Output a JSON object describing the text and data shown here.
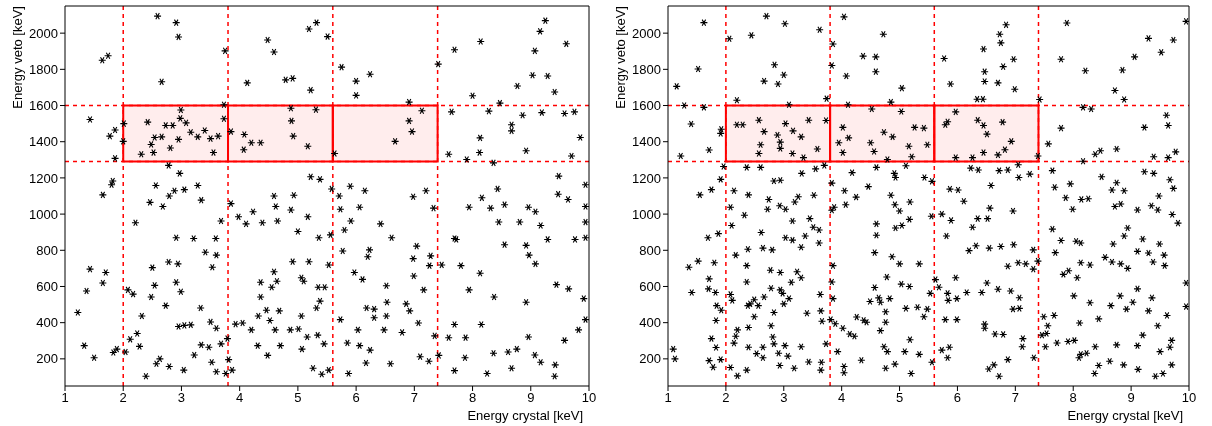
{
  "chart_data": [
    {
      "type": "scatter",
      "xlabel": "Energy crystal [keV]",
      "ylabel": "Energy veto [keV]",
      "xlim": [
        1,
        10
      ],
      "xticks": [
        1,
        2,
        3,
        4,
        5,
        6,
        7,
        8,
        9,
        10
      ],
      "ylim": [
        50,
        2150
      ],
      "yticks": [
        200,
        400,
        600,
        800,
        1000,
        1200,
        1400,
        1600,
        1800,
        2000
      ],
      "grid": false,
      "legend": false,
      "marker": "cross",
      "ref_lines": [
        {
          "axis": "x",
          "value": 2,
          "color": "#ff0000",
          "line_style": "dashed"
        },
        {
          "axis": "x",
          "value": 3.8,
          "color": "#ff0000",
          "line_style": "dashed"
        },
        {
          "axis": "x",
          "value": 5.6,
          "color": "#ff0000",
          "line_style": "dashed"
        },
        {
          "axis": "x",
          "value": 7.4,
          "color": "#ff0000",
          "line_style": "dashed"
        },
        {
          "axis": "y",
          "value": 1290,
          "color": "#ff0000",
          "line_style": "dashed"
        },
        {
          "axis": "y",
          "value": 1600,
          "color": "#ff0000",
          "line_style": "dashed"
        }
      ],
      "bands": [
        {
          "axis": "x",
          "from": 2,
          "to": 3.8,
          "color": "#ff0000"
        },
        {
          "axis": "x",
          "from": 3.8,
          "to": 5.6,
          "color": "#ff0000"
        },
        {
          "axis": "x",
          "from": 5.6,
          "to": 7.4,
          "color": "#ff0000"
        }
      ],
      "series": [
        {
          "color": "#000000",
          "x": [
            2.59,
            2.91,
            2.95,
            1.64,
            1.74,
            2.66,
            3.75,
            4.48,
            4.59,
            4.13,
            4.79,
            4.91,
            5.19,
            5.32,
            5.51,
            5.22,
            5.75,
            6.0,
            6.0,
            6.24,
            7.41,
            7.69,
            8.14,
            8.0,
            8.77,
            9.03,
            9.07,
            9.16,
            9.25,
            9.29,
            9.41,
            9.61,
            8.47,
            1.43,
            1.86,
            1.77,
            2.01,
            2.0,
            1.86,
            2.31,
            2.42,
            2.54,
            2.66,
            2.48,
            2.52,
            2.73,
            2.85,
            2.99,
            2.98,
            3.08,
            2.95,
            2.81,
            3.16,
            3.28,
            3.4,
            3.5,
            3.63,
            3.55,
            3.73,
            3.73,
            3.85,
            4.08,
            4.2,
            4.07,
            4.36,
            4.88,
            4.89,
            4.92,
            5.17,
            5.31,
            5.63,
            6.67,
            6.91,
            6.91,
            6.96,
            7.13,
            7.64,
            8.13,
            8.12,
            8.28,
            8.67,
            8.67,
            8.86,
            8.92,
            9.19,
            9.58,
            9.75,
            9.85,
            9.7,
            7.59,
            7.9,
            8.36,
            1.65,
            1.82,
            1.8,
            2.21,
            2.46,
            2.56,
            2.68,
            2.79,
            2.88,
            3.05,
            2.97,
            2.78,
            3.28,
            3.34,
            3.68,
            3.85,
            3.98,
            4.11,
            4.23,
            4.39,
            4.59,
            4.62,
            4.65,
            4.88,
            4.93,
            5.0,
            5.17,
            5.36,
            5.22,
            5.38,
            5.56,
            5.58,
            5.71,
            5.73,
            5.9,
            5.91,
            6.06,
            6.15,
            5.8,
            6.42,
            6.61,
            6.98,
            7.2,
            7.33,
            7.69,
            7.94,
            8.16,
            8.31,
            8.43,
            8.55,
            8.45,
            8.96,
            9.08,
            9.48,
            9.47,
            9.64,
            9.94,
            9.94,
            9.94,
            9.76,
            9.94,
            9.17,
            9.29,
            8.92,
            8.55,
            8.81,
            8.97,
            9.08,
            9.44,
            9.65,
            9.91,
            9.94,
            9.82,
            9.58,
            9.42,
            9.41,
            9.17,
            9.07,
            8.96,
            8.76,
            8.61,
            8.67,
            8.92,
            8.37,
            8.13,
            7.94,
            8.15,
            7.88,
            8.25,
            8.36,
            7.87,
            7.69,
            7.59,
            7.69,
            7.42,
            7.35,
            7.47,
            7.8,
            7.72,
            7.26,
            7.28,
            7.16,
            7.07,
            6.99,
            6.98,
            7.04,
            6.86,
            6.92,
            6.79,
            7.1,
            7.25,
            6.59,
            6.52,
            6.53,
            6.52,
            6.48,
            6.31,
            6.31,
            6.18,
            6.23,
            6.2,
            6.11,
            5.97,
            5.77,
            5.73,
            6.03,
            6.06,
            6.24,
            6.17,
            5.85,
            5.87,
            5.53,
            5.41,
            5.26,
            5.45,
            5.34,
            5.16,
            5.07,
            5.01,
            4.87,
            5.06,
            5.32,
            5.38,
            5.46,
            5.53,
            5.19,
            5.35,
            4.91,
            5.06,
            5.1,
            4.64,
            4.59,
            4.55,
            4.46,
            4.52,
            4.68,
            4.61,
            4.7,
            4.48,
            4.31,
            4.2,
            4.05,
            3.93,
            4.36,
            4.36,
            4.32,
            3.79,
            3.81,
            3.87,
            3.76,
            3.6,
            3.52,
            3.68,
            3.47,
            3.34,
            3.22,
            3.04,
            2.79,
            2.63,
            2.57,
            2.39,
            2.28,
            2.24,
            2.12,
            2.04,
            1.89,
            1.83,
            1.5,
            1.33,
            1.22,
            1.37,
            1.43,
            1.65,
            1.7,
            2.08,
            2.17,
            2.32,
            2.48,
            2.5,
            2.54,
            2.73,
            2.78,
            2.91,
            2.94,
            2.99,
            2.91,
            2.95,
            3.05,
            3.16,
            3.21,
            3.33,
            3.41,
            3.5,
            3.6,
            3.53,
            3.6,
            3.59
          ],
          "values": [
            2094,
            2058,
            1979,
            1850,
            1875,
            1731,
            1902,
            1962,
            1896,
            1725,
            1742,
            1750,
            2023,
            2058,
            1981,
            1685,
            1812,
            1735,
            1656,
            1773,
            1829,
            1908,
            1954,
            1654,
            1708,
            1767,
            1902,
            2010,
            2069,
            1763,
            1675,
            1941,
            1613,
            1523,
            1465,
            1431,
            1500,
            1402,
            1308,
            1331,
            1508,
            1423,
            1427,
            1385,
            1340,
            1490,
            1490,
            1575,
            1529,
            1504,
            1413,
            1365,
            1452,
            1427,
            1462,
            1417,
            1431,
            1340,
            1527,
            1604,
            1456,
            1440,
            1394,
            1356,
            1394,
            1585,
            1515,
            1431,
            1375,
            1577,
            1335,
            1402,
            1619,
            1515,
            1456,
            1571,
            1565,
            1421,
            1340,
            1569,
            1494,
            1460,
            1546,
            1350,
            1561,
            1556,
            1565,
            1423,
            1321,
            1331,
            1302,
            1283,
            1106,
            1183,
            1162,
            952,
            1065,
            1158,
            1042,
            1100,
            1129,
            1135,
            1225,
            1269,
            1158,
            1077,
            962,
            1058,
            985,
            946,
            1013,
            952,
            1100,
            1042,
            962,
            1023,
            1104,
            904,
            985,
            869,
            1206,
            1192,
            885,
            1139,
            1100,
            1027,
            1154,
            962,
            1038,
            1129,
            912,
            946,
            869,
            1096,
            1129,
            1033,
            865,
            1038,
            1090,
            1033,
            1139,
            1052,
            956,
            1038,
            1013,
            1210,
            1110,
            1081,
            1162,
            1042,
            956,
            860,
            869,
            937,
            860,
            827,
            831,
            956,
            773,
            725,
            610,
            587,
            533,
            417,
            360,
            302,
            167,
            104,
            181,
            221,
            321,
            254,
            238,
            148,
            513,
            542,
            673,
            581,
            390,
            317,
            119,
            231,
            206,
            390,
            317,
            135,
            219,
            327,
            719,
            715,
            860,
            715,
            769,
            581,
            398,
            658,
            754,
            823,
            504,
            465,
            346,
            212,
            187,
            173,
            604,
            513,
            437,
            360,
            475,
            427,
            481,
            802,
            764,
            639,
            677,
            796,
            417,
            360,
            273,
            248,
            177,
            288,
            119,
            138,
            115,
            148,
            283,
            331,
            321,
            254,
            365,
            360,
            437,
            481,
            519,
            596,
            719,
            737,
            596,
            737,
            648,
            629,
            629,
            681,
            596,
            469,
            412,
            465,
            360,
            273,
            219,
            273,
            360,
            398,
            392,
            623,
            542,
            437,
            312,
            196,
            138,
            119,
            129,
            181,
            283,
            264,
            277,
            221,
            138,
            158,
            200,
            173,
            104,
            269,
            340,
            308,
            238,
            254,
            235,
            206,
            273,
            456,
            575,
            696,
            619,
            677,
            581,
            558,
            437,
            542,
            704,
            606,
            494,
            735,
            623,
            725,
            571,
            869,
            379,
            385,
            388,
            865,
            481,
            789,
            404,
            369,
            706,
            773,
            865
          ]
        }
      ]
    },
    {
      "type": "scatter",
      "xlabel": "Energy crystal [keV]",
      "ylabel": "Energy veto [keV]",
      "xlim": [
        1,
        10
      ],
      "xticks": [
        1,
        2,
        3,
        4,
        5,
        6,
        7,
        8,
        9,
        10
      ],
      "ylim": [
        50,
        2150
      ],
      "yticks": [
        200,
        400,
        600,
        800,
        1000,
        1200,
        1400,
        1600,
        1800,
        2000
      ],
      "grid": false,
      "legend": false,
      "marker": "cross",
      "ref_lines": [
        {
          "axis": "x",
          "value": 2,
          "color": "#ff0000",
          "line_style": "dashed"
        },
        {
          "axis": "x",
          "value": 3.8,
          "color": "#ff0000",
          "line_style": "dashed"
        },
        {
          "axis": "x",
          "value": 5.6,
          "color": "#ff0000",
          "line_style": "dashed"
        },
        {
          "axis": "x",
          "value": 7.4,
          "color": "#ff0000",
          "line_style": "dashed"
        },
        {
          "axis": "y",
          "value": 1290,
          "color": "#ff0000",
          "line_style": "dashed"
        },
        {
          "axis": "y",
          "value": 1600,
          "color": "#ff0000",
          "line_style": "dashed"
        }
      ],
      "bands": [
        {
          "axis": "x",
          "from": 2,
          "to": 3.8,
          "color": "#ff0000"
        },
        {
          "axis": "x",
          "from": 3.8,
          "to": 5.6,
          "color": "#ff0000"
        },
        {
          "axis": "x",
          "from": 5.6,
          "to": 7.4,
          "color": "#ff0000"
        }
      ],
      "series": [
        {
          "color": "#000000",
          "x": [
            2.7,
            1.62,
            3.02,
            2.44,
            2.06,
            3.62,
            4.04,
            4.72,
            3.85,
            3.83,
            1.52,
            2.84,
            3.0,
            2.66,
            2.9,
            1.15,
            4.08,
            4.37,
            4.59,
            4.59,
            5.04,
            5.77,
            5.88,
            6.45,
            6.47,
            6.47,
            6.7,
            6.73,
            6.84,
            6.75,
            6.79,
            6.97,
            6.99,
            7.89,
            7.79,
            8.21,
            8.72,
            8.85,
            9.06,
            9.3,
            9.52,
            9.73,
            9.95,
            8.88,
            2.19,
            3.09,
            3.74,
            4.85,
            6.34,
            6.44,
            7.42,
            1.28,
            1.62,
            1.4,
            1.22,
            1.71,
            1.92,
            1.91,
            2.19,
            2.29,
            2.57,
            2.66,
            2.6,
            2.57,
            2.89,
            2.94,
            2.94,
            3.03,
            3.16,
            3.3,
            3.15,
            3.34,
            3.43,
            3.58,
            3.73,
            4.02,
            3.95,
            4.02,
            4.12,
            4.11,
            4.52,
            4.5,
            4.56,
            4.73,
            4.88,
            5.03,
            5.16,
            5.26,
            5.42,
            5.48,
            5.21,
            4.79,
            5.79,
            5.83,
            5.97,
            5.97,
            6.35,
            6.45,
            6.51,
            6.45,
            6.7,
            6.82,
            6.93,
            6.78,
            6.26,
            7.39,
            7.57,
            7.79,
            8.17,
            8.31,
            8.38,
            8.47,
            8.75,
            9.23,
            9.39,
            9.61,
            9.64,
            9.77,
            9.64,
            8.17,
            1.96,
            1.91,
            1.75,
            1.55,
            2.14,
            2.08,
            2.36,
            2.6,
            2.39,
            2.32,
            2.1,
            2.61,
            2.83,
            2.94,
            2.74,
            2.72,
            2.93,
            3.03,
            3.19,
            3.25,
            3.15,
            3.03,
            3.15,
            3.3,
            3.37,
            3.45,
            3.51,
            3.61,
            3.61,
            3.52,
            3.55,
            3.7,
            3.31,
            3.83,
            3.83,
            3.87,
            4.05,
            4.07,
            4.18,
            4.25,
            4.46,
            4.6,
            4.91,
            4.93,
            5.11,
            4.85,
            4.92,
            5.0,
            5.18,
            5.17,
            5.04,
            4.93,
            4.6,
            4.6,
            4.57,
            4.87,
            5.0,
            5.34,
            5.43,
            5.56,
            5.55,
            5.73,
            5.89,
            5.87,
            6.01,
            6.11,
            5.81,
            6.26,
            6.35,
            6.56,
            6.58,
            6.52,
            6.23,
            6.36,
            6.72,
            6.87,
            7.05,
            7.06,
            7.25,
            6.96,
            6.2,
            6.32,
            6.55,
            6.75,
            6.97,
            6.87,
            7.05,
            7.18,
            7.31,
            7.31,
            7.39,
            7.64,
            7.79,
            7.69,
            7.87,
            7.95,
            7.99,
            8.14,
            8.26,
            7.64,
            7.68,
            8.49,
            8.67,
            8.75,
            8.88,
            8.72,
            8.82,
            9.11,
            9.35,
            9.46,
            9.48,
            9.23,
            9.39,
            9.67,
            9.73,
            9.71,
            9.81,
            8.94,
            8.88,
            8.69,
            9.2,
            9.11,
            9.3,
            9.49,
            9.57,
            9.58,
            9.38,
            8.94,
            8.82,
            8.67,
            8.55,
            8.13,
            8.05,
            8.13,
            8.29,
            7.92,
            7.83,
            8.07,
            8.01,
            8.29,
            8.44,
            8.65,
            8.81,
            8.92,
            9.03,
            9.11,
            9.36,
            9.3,
            9.46,
            9.62,
            9.95,
            9.95,
            9.7,
            9.67,
            9.5,
            9.7,
            9.55,
            9.42,
            9.12,
            9.11,
            9.2,
            8.87,
            8.75,
            8.63,
            8.44,
            8.37,
            8.38,
            8.13,
            8.1,
            8.02,
            7.91,
            8.23,
            8.11,
            7.72,
            7.54,
            7.46,
            7.52,
            7.56,
            7.67,
            7.49,
            7.32,
            7.13,
            7.12,
            6.87,
            6.79,
            6.65,
            6.72,
            6.63,
            6.54,
            6.47,
            6.47,
            6.96,
            7.07,
            7.07,
            6.92,
            6.7,
            6.51,
            6.42,
            6.16,
            5.99,
            5.97,
            5.83,
            5.84,
            5.68,
            5.62,
            5.53,
            5.79,
            5.99,
            5.73,
            5.86,
            5.83,
            5.56,
            5.34,
            5.2,
            5.18,
            5.09,
            4.92,
            4.76,
            4.79,
            4.73,
            4.67,
            4.76,
            4.76,
            4.67,
            4.64,
            4.83,
            4.57,
            4.49,
            5.11,
            5.31,
            5.42,
            5.48,
            5.17,
            5.03,
            4.78,
            4.43,
            4.38,
            4.26,
            4.22,
            4.14,
            4.02,
            3.89,
            3.81,
            3.85,
            3.83,
            3.85,
            3.73,
            3.93,
            4.04,
            4.04,
            4.34,
            3.65,
            3.64,
            3.43,
            3.3,
            3.18,
            3.07,
            3.02,
            2.93,
            2.91,
            2.81,
            2.78,
            2.83,
            3.0,
            2.98,
            2.94,
            3.09,
            2.94,
            2.78,
            2.77,
            3.13,
            3.23,
            3.3,
            3.63,
            3.64,
            3.66,
            3.4,
            2.66,
            2.49,
            2.42,
            2.38,
            2.56,
            2.49,
            2.39,
            2.64,
            2.64,
            2.53,
            2.39,
            2.83,
            2.36,
            2.2,
            2.08,
            2.14,
            2.2,
            2.17,
            2.08,
            2.11,
            2.36,
            2.36,
            2.17,
            2.38,
            2.64,
            2.8,
            1.8,
            1.52,
            1.36,
            1.41,
            1.69,
            1.87,
            1.71,
            1.7,
            1.82,
            1.84,
            1.92,
            1.83,
            1.75,
            1.83,
            1.71,
            1.78,
            1.91,
            1.09,
            1.12
          ],
          "values": [
            2094,
            2058,
            2052,
            1988,
            1969,
            2019,
            2090,
            1994,
            1940,
            1821,
            1802,
            1825,
            1769,
            1735,
            1719,
            1706,
            1763,
            1873,
            1869,
            1787,
            1696,
            1860,
            1719,
            1912,
            1787,
            1733,
            1725,
            1994,
            2046,
            1946,
            1815,
            1856,
            1690,
            2056,
            1856,
            1792,
            1683,
            1796,
            1869,
            1971,
            1894,
            1962,
            2065,
            1633,
            1629,
            1604,
            1638,
            1619,
            1635,
            1635,
            1633,
            1600,
            1590,
            1498,
            1321,
            1354,
            1469,
            1446,
            1494,
            1494,
            1519,
            1456,
            1383,
            1335,
            1437,
            1398,
            1363,
            1500,
            1460,
            1427,
            1335,
            1312,
            1519,
            1360,
            1517,
            1479,
            1394,
            1340,
            1421,
            1604,
            1581,
            1394,
            1346,
            1452,
            1427,
            1567,
            1375,
            1479,
            1475,
            1383,
            1317,
            1302,
            1494,
            1510,
            1565,
            1312,
            1519,
            1490,
            1442,
            1340,
            1327,
            1356,
            1402,
            1508,
            1312,
            1321,
            1388,
            1475,
            1590,
            1581,
            1331,
            1350,
            1360,
            1479,
            1317,
            1546,
            1490,
            1344,
            1312,
            1292,
            1263,
            1192,
            1135,
            1106,
            1129,
            1038,
            1258,
            1258,
            1106,
            994,
            937,
            898,
            1183,
            1187,
            1081,
            1027,
            1046,
            1027,
            1067,
            1096,
            962,
            869,
            856,
            817,
            879,
            975,
            927,
            912,
            840,
            1104,
            1250,
            1269,
            1225,
            1171,
            1021,
            1038,
            1129,
            1052,
            1229,
            1094,
            1152,
            1258,
            1225,
            1202,
            1267,
            1104,
            1052,
            1017,
            1067,
            971,
            937,
            923,
            946,
            883,
            787,
            764,
            725,
            725,
            1202,
            1181,
            988,
            1000,
            965,
            1138,
            1133,
            1071,
            879,
            927,
            975,
            1033,
            1158,
            975,
            1254,
            1244,
            1240,
            1244,
            1273,
            1202,
            1221,
            1017,
            798,
            825,
            812,
            821,
            831,
            712,
            731,
            725,
            696,
            802,
            740,
            917,
            854,
            787,
            1090,
            1167,
            1027,
            1081,
            1085,
            1240,
            1148,
            1206,
            1133,
            1173,
            1129,
            1042,
            1056,
            1023,
            1046,
            1023,
            1100,
            1234,
            1225,
            1190,
            1142,
            998,
            950,
            923,
            879,
            835,
            862,
            794,
            785,
            835,
            773,
            715,
            735,
            700,
            725,
            735,
            761,
            840,
            850,
            731,
            719,
            687,
            667,
            648,
            548,
            510,
            421,
            494,
            548,
            475,
            513,
            587,
            537,
            465,
            383,
            440,
            619,
            489,
            302,
            264,
            240,
            167,
            119,
            104,
            142,
            273,
            331,
            167,
            277,
            187,
            163,
            119,
            267,
            225,
            206,
            302,
            296,
            231,
            398,
            288,
            340,
            331,
            267,
            383,
            440,
            433,
            206,
            312,
            267,
            196,
            335,
            337,
            104,
            167,
            144,
            369,
            392,
            475,
            479,
            538,
            575,
            585,
            619,
            567,
            567,
            533,
            648,
            562,
            523,
            596,
            638,
            562,
            417,
            417,
            248,
            264,
            206,
            181,
            225,
            119,
            306,
            240,
            171,
            148,
            240,
            267,
            356,
            402,
            460,
            513,
            537,
            533,
            594,
            517,
            479,
            485,
            433,
            475,
            600,
            613,
            652,
            402,
            413,
            431,
            325,
            337,
            369,
            394,
            417,
            533,
            625,
            715,
            283,
            240,
            158,
            123,
            192,
            181,
            138,
            183,
            267,
            148,
            215,
            273,
            163,
            231,
            321,
            383,
            456,
            504,
            562,
            581,
            533,
            677,
            590,
            690,
            623,
            681,
            648,
            556,
            465,
            408,
            452,
            542,
            527,
            504,
            494,
            494,
            433,
            373,
            264,
            206,
            229,
            264,
            283,
            138,
            106,
            152,
            287,
            360,
            325,
            556,
            523,
            625,
            715,
            773,
            806,
            812,
            802,
            731,
            740,
            706,
            567,
            869,
            892,
            642,
            587,
            567,
            494,
            469,
            412,
            312,
            263,
            190,
            154,
            196,
            254,
            200
          ]
        }
      ]
    }
  ]
}
